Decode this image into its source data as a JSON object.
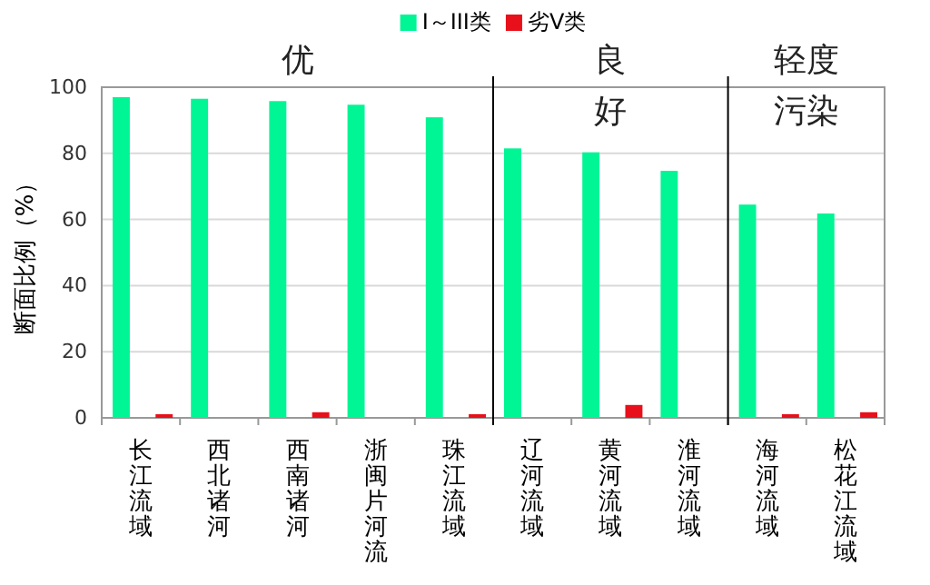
{
  "chart_data": {
    "type": "bar",
    "categories": [
      "长江流域",
      "西北诸河",
      "西南诸河",
      "浙闽片河流",
      "珠江流域",
      "辽河流域",
      "黄河流域",
      "淮河流域",
      "海河流域",
      "松花江流域"
    ],
    "series": [
      {
        "name": "I～III类",
        "color": "#00f595",
        "values": [
          97,
          96.5,
          95.8,
          94.7,
          90.9,
          81.5,
          80.3,
          74.7,
          64.5,
          61.8
        ]
      },
      {
        "name": "劣V类",
        "color": "#e8101a",
        "values": [
          1.1,
          0,
          1.7,
          0,
          1.1,
          0,
          3.9,
          0,
          1.1,
          1.7
        ]
      }
    ],
    "ylabel": "断面比例（%）",
    "ylim": [
      0,
      100
    ],
    "yticks": [
      0,
      20,
      40,
      60,
      80,
      100
    ],
    "grid": "y",
    "legend": "top",
    "annotations": [
      "优",
      "良好",
      "轻度污染"
    ]
  }
}
